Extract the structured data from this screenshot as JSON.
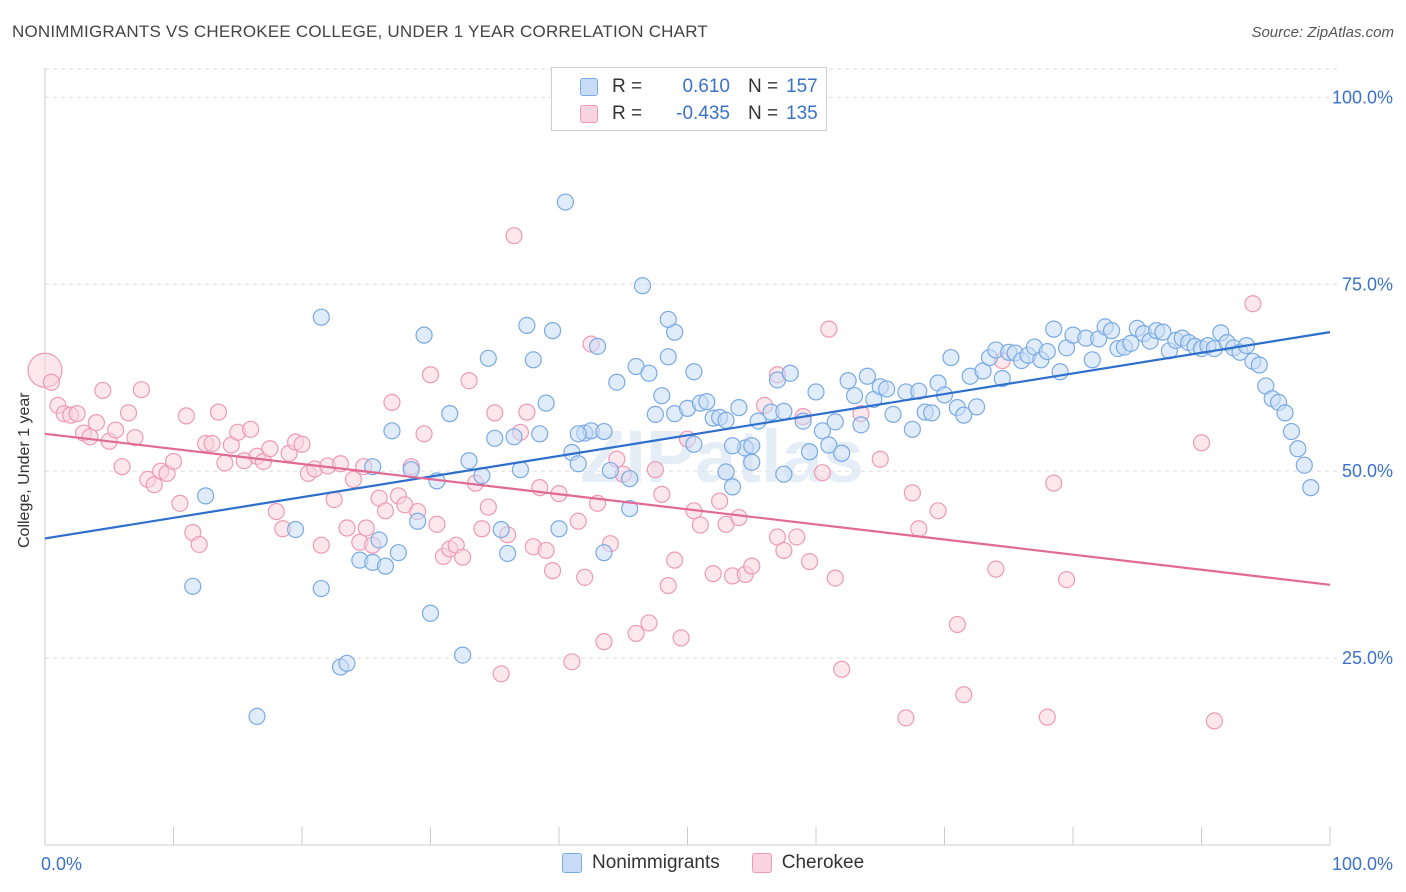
{
  "title": "NONIMMIGRANTS VS CHEROKEE COLLEGE, UNDER 1 YEAR CORRELATION CHART",
  "source": "Source: ZipAtlas.com",
  "watermark": "ZIPatlas",
  "legend": {
    "rows": [
      {
        "r_label": "R =",
        "r_value": "0.610",
        "n_label": "N =",
        "n_value": "157"
      },
      {
        "r_label": "R =",
        "r_value": "-0.435",
        "n_label": "N =",
        "n_value": "135"
      }
    ]
  },
  "colors": {
    "blue": "#7aaae4",
    "blue_line": "#2f6fcc",
    "blue_fill": "#c9dcf5",
    "pink": "#ee9ab5",
    "pink_line": "#e06a93",
    "pink_fill": "#f9d3df",
    "tick_text": "#3a72c9",
    "grid": "#dddddd"
  },
  "chart_data": {
    "type": "scatter",
    "title": "NONIMMIGRANTS VS CHEROKEE COLLEGE, UNDER 1 YEAR CORRELATION CHART",
    "xlabel": "",
    "ylabel": "College, Under 1 year",
    "xlim": [
      0,
      100
    ],
    "ylim": [
      0,
      105
    ],
    "x_tick_labels": [
      "0.0%",
      "100.0%"
    ],
    "y_ticks": [
      25,
      50,
      75,
      100
    ],
    "y_tick_labels": [
      "25.0%",
      "50.0%",
      "75.0%",
      "100.0%"
    ],
    "grid": "horizontal dashed",
    "legend_position": "top-center",
    "series": [
      {
        "name": "Nonimmigrants",
        "r": 0.61,
        "n": 157,
        "trend": {
          "x": [
            0,
            100
          ],
          "y": [
            41.0,
            68.6
          ]
        },
        "points": [
          [
            11.5,
            34.6
          ],
          [
            12.5,
            46.7
          ],
          [
            16.5,
            17.2
          ],
          [
            19.5,
            42.2
          ],
          [
            21.5,
            70.6
          ],
          [
            21.5,
            34.3
          ],
          [
            23.0,
            23.8
          ],
          [
            23.5,
            24.3
          ],
          [
            24.5,
            38.1
          ],
          [
            25.5,
            37.8
          ],
          [
            25.5,
            50.6
          ],
          [
            26.0,
            40.8
          ],
          [
            26.5,
            37.3
          ],
          [
            27.0,
            55.4
          ],
          [
            27.5,
            39.1
          ],
          [
            28.5,
            50.2
          ],
          [
            29.0,
            43.3
          ],
          [
            29.5,
            68.2
          ],
          [
            30.0,
            31.0
          ],
          [
            30.5,
            48.7
          ],
          [
            31.5,
            57.7
          ],
          [
            32.5,
            25.4
          ],
          [
            33.0,
            51.4
          ],
          [
            34.0,
            49.4
          ],
          [
            34.5,
            65.1
          ],
          [
            35.0,
            54.4
          ],
          [
            35.5,
            42.2
          ],
          [
            36.0,
            39.0
          ],
          [
            36.5,
            54.6
          ],
          [
            37.0,
            50.2
          ],
          [
            37.5,
            69.5
          ],
          [
            38.0,
            64.9
          ],
          [
            38.5,
            55.0
          ],
          [
            39.0,
            59.1
          ],
          [
            39.5,
            68.8
          ],
          [
            40.0,
            42.3
          ],
          [
            40.5,
            86.0
          ],
          [
            41.0,
            52.5
          ],
          [
            41.5,
            51.0
          ],
          [
            42.0,
            55.1
          ],
          [
            42.5,
            55.4
          ],
          [
            43.0,
            66.7
          ],
          [
            43.5,
            55.3
          ],
          [
            43.5,
            39.1
          ],
          [
            44.0,
            50.1
          ],
          [
            44.5,
            61.9
          ],
          [
            45.5,
            49.0
          ],
          [
            45.5,
            45.0
          ],
          [
            46.0,
            64.0
          ],
          [
            46.5,
            74.8
          ],
          [
            47.0,
            63.1
          ],
          [
            47.5,
            57.6
          ],
          [
            48.0,
            60.1
          ],
          [
            48.5,
            65.3
          ],
          [
            49.0,
            68.6
          ],
          [
            49.0,
            57.7
          ],
          [
            50.0,
            58.4
          ],
          [
            50.5,
            63.3
          ],
          [
            50.5,
            53.6
          ],
          [
            51.0,
            59.1
          ],
          [
            51.5,
            59.3
          ],
          [
            52.0,
            57.1
          ],
          [
            52.5,
            57.2
          ],
          [
            53.0,
            56.8
          ],
          [
            53.0,
            49.9
          ],
          [
            53.5,
            47.9
          ],
          [
            54.0,
            58.5
          ],
          [
            54.5,
            53.1
          ],
          [
            55.0,
            53.4
          ],
          [
            55.0,
            51.2
          ],
          [
            55.5,
            56.7
          ],
          [
            56.5,
            57.9
          ],
          [
            57.0,
            62.2
          ],
          [
            57.5,
            49.6
          ],
          [
            57.5,
            58.0
          ],
          [
            58.0,
            63.1
          ],
          [
            59.0,
            56.7
          ],
          [
            59.5,
            52.6
          ],
          [
            60.0,
            60.6
          ],
          [
            60.5,
            55.4
          ],
          [
            61.0,
            53.5
          ],
          [
            61.5,
            56.6
          ],
          [
            62.0,
            52.4
          ],
          [
            62.5,
            62.1
          ],
          [
            63.0,
            60.1
          ],
          [
            63.5,
            56.2
          ],
          [
            64.0,
            62.7
          ],
          [
            64.5,
            59.6
          ],
          [
            65.0,
            61.3
          ],
          [
            65.5,
            61.0
          ],
          [
            66.0,
            57.6
          ],
          [
            67.0,
            60.6
          ],
          [
            67.5,
            55.6
          ],
          [
            68.0,
            60.7
          ],
          [
            68.5,
            57.9
          ],
          [
            69.0,
            57.8
          ],
          [
            69.5,
            61.8
          ],
          [
            70.0,
            60.2
          ],
          [
            70.5,
            65.2
          ],
          [
            71.0,
            58.5
          ],
          [
            71.5,
            57.5
          ],
          [
            72.0,
            62.7
          ],
          [
            72.5,
            58.6
          ],
          [
            73.0,
            63.4
          ],
          [
            73.5,
            65.2
          ],
          [
            74.0,
            66.2
          ],
          [
            74.5,
            62.4
          ],
          [
            75.0,
            65.9
          ],
          [
            75.5,
            65.8
          ],
          [
            76.0,
            64.8
          ],
          [
            76.5,
            65.5
          ],
          [
            77.0,
            66.6
          ],
          [
            77.5,
            64.9
          ],
          [
            78.0,
            66.0
          ],
          [
            78.5,
            69.0
          ],
          [
            79.0,
            63.3
          ],
          [
            79.5,
            66.5
          ],
          [
            80.0,
            68.2
          ],
          [
            81.0,
            67.8
          ],
          [
            81.5,
            64.9
          ],
          [
            82.0,
            67.7
          ],
          [
            82.5,
            69.3
          ],
          [
            83.0,
            68.8
          ],
          [
            83.5,
            66.4
          ],
          [
            84.0,
            66.6
          ],
          [
            84.5,
            67.1
          ],
          [
            85.0,
            69.1
          ],
          [
            85.5,
            68.4
          ],
          [
            86.0,
            67.4
          ],
          [
            86.5,
            68.8
          ],
          [
            87.0,
            68.6
          ],
          [
            87.5,
            66.1
          ],
          [
            88.0,
            67.5
          ],
          [
            88.5,
            67.8
          ],
          [
            89.0,
            67.2
          ],
          [
            89.5,
            66.7
          ],
          [
            90.0,
            66.4
          ],
          [
            90.5,
            66.8
          ],
          [
            91.0,
            66.4
          ],
          [
            91.5,
            68.5
          ],
          [
            92.0,
            67.2
          ],
          [
            92.5,
            66.5
          ],
          [
            93.0,
            65.9
          ],
          [
            93.5,
            66.8
          ],
          [
            94.0,
            64.7
          ],
          [
            94.5,
            64.2
          ],
          [
            95.0,
            61.4
          ],
          [
            95.5,
            59.7
          ],
          [
            96.0,
            59.2
          ],
          [
            96.5,
            57.8
          ],
          [
            97.0,
            55.3
          ],
          [
            97.5,
            53.0
          ],
          [
            98.0,
            50.8
          ],
          [
            98.5,
            47.8
          ],
          [
            48.5,
            70.3
          ],
          [
            41.5,
            55.0
          ],
          [
            53.5,
            53.4
          ]
        ]
      },
      {
        "name": "Cherokee",
        "r": -0.435,
        "n": 135,
        "trend": {
          "x": [
            0,
            100
          ],
          "y": [
            55.0,
            34.8
          ]
        },
        "points": [
          [
            0.0,
            63.5
          ],
          [
            0.5,
            61.9
          ],
          [
            1.0,
            58.8
          ],
          [
            1.5,
            57.7
          ],
          [
            2.0,
            57.5
          ],
          [
            2.5,
            57.7
          ],
          [
            3.0,
            55.1
          ],
          [
            3.5,
            54.6
          ],
          [
            4.0,
            56.5
          ],
          [
            4.5,
            60.8
          ],
          [
            5.0,
            54.0
          ],
          [
            5.5,
            55.5
          ],
          [
            6.0,
            50.6
          ],
          [
            6.5,
            57.8
          ],
          [
            7.0,
            54.5
          ],
          [
            7.5,
            60.9
          ],
          [
            8.0,
            48.9
          ],
          [
            8.5,
            48.2
          ],
          [
            9.0,
            50.0
          ],
          [
            9.5,
            49.7
          ],
          [
            10.0,
            51.3
          ],
          [
            10.5,
            45.7
          ],
          [
            11.0,
            57.4
          ],
          [
            11.5,
            41.8
          ],
          [
            12.0,
            40.2
          ],
          [
            12.5,
            53.7
          ],
          [
            13.0,
            53.7
          ],
          [
            13.5,
            57.9
          ],
          [
            14.0,
            51.1
          ],
          [
            14.5,
            53.5
          ],
          [
            15.0,
            55.2
          ],
          [
            15.5,
            51.4
          ],
          [
            16.0,
            55.6
          ],
          [
            16.5,
            52.0
          ],
          [
            17.0,
            51.3
          ],
          [
            17.5,
            53.0
          ],
          [
            18.0,
            44.6
          ],
          [
            18.5,
            42.3
          ],
          [
            19.0,
            52.4
          ],
          [
            19.5,
            53.9
          ],
          [
            20.0,
            53.6
          ],
          [
            20.5,
            49.7
          ],
          [
            21.0,
            50.3
          ],
          [
            21.5,
            40.1
          ],
          [
            22.0,
            50.7
          ],
          [
            22.5,
            46.2
          ],
          [
            23.0,
            51.0
          ],
          [
            23.5,
            42.4
          ],
          [
            24.0,
            48.9
          ],
          [
            24.5,
            40.5
          ],
          [
            25.0,
            42.4
          ],
          [
            25.5,
            40.1
          ],
          [
            26.0,
            46.4
          ],
          [
            26.5,
            44.7
          ],
          [
            27.0,
            59.2
          ],
          [
            27.5,
            46.7
          ],
          [
            28.0,
            45.5
          ],
          [
            28.5,
            50.6
          ],
          [
            29.0,
            44.6
          ],
          [
            29.5,
            55.0
          ],
          [
            30.0,
            62.9
          ],
          [
            30.5,
            42.9
          ],
          [
            31.0,
            38.6
          ],
          [
            31.5,
            39.6
          ],
          [
            32.0,
            40.1
          ],
          [
            32.5,
            38.5
          ],
          [
            33.0,
            62.1
          ],
          [
            33.5,
            48.4
          ],
          [
            34.0,
            42.3
          ],
          [
            34.5,
            45.2
          ],
          [
            35.0,
            57.8
          ],
          [
            35.5,
            22.9
          ],
          [
            36.0,
            41.5
          ],
          [
            36.5,
            81.5
          ],
          [
            37.0,
            55.2
          ],
          [
            37.5,
            57.9
          ],
          [
            38.0,
            39.9
          ],
          [
            38.5,
            47.8
          ],
          [
            39.0,
            39.4
          ],
          [
            39.5,
            36.7
          ],
          [
            40.0,
            47.0
          ],
          [
            41.0,
            24.5
          ],
          [
            41.5,
            43.3
          ],
          [
            42.0,
            35.8
          ],
          [
            42.5,
            67.0
          ],
          [
            43.0,
            45.7
          ],
          [
            43.5,
            27.2
          ],
          [
            44.0,
            40.3
          ],
          [
            44.5,
            51.6
          ],
          [
            45.0,
            49.6
          ],
          [
            46.0,
            28.3
          ],
          [
            47.0,
            29.7
          ],
          [
            47.5,
            50.2
          ],
          [
            48.0,
            46.9
          ],
          [
            48.5,
            34.7
          ],
          [
            49.0,
            38.1
          ],
          [
            49.5,
            27.7
          ],
          [
            50.0,
            54.3
          ],
          [
            50.5,
            44.7
          ],
          [
            51.0,
            42.8
          ],
          [
            52.0,
            36.3
          ],
          [
            52.5,
            46.0
          ],
          [
            53.0,
            42.9
          ],
          [
            53.5,
            36.0
          ],
          [
            54.0,
            43.8
          ],
          [
            54.5,
            36.2
          ],
          [
            55.0,
            37.3
          ],
          [
            56.0,
            58.8
          ],
          [
            57.0,
            41.2
          ],
          [
            57.5,
            39.4
          ],
          [
            58.5,
            41.2
          ],
          [
            59.5,
            37.9
          ],
          [
            60.5,
            49.8
          ],
          [
            61.0,
            69.0
          ],
          [
            61.5,
            35.7
          ],
          [
            62.0,
            23.5
          ],
          [
            63.5,
            57.7
          ],
          [
            65.0,
            51.6
          ],
          [
            67.0,
            17.0
          ],
          [
            67.5,
            47.1
          ],
          [
            68.0,
            42.3
          ],
          [
            69.5,
            44.7
          ],
          [
            71.0,
            29.5
          ],
          [
            71.5,
            20.1
          ],
          [
            74.0,
            36.9
          ],
          [
            74.5,
            64.8
          ],
          [
            78.0,
            17.1
          ],
          [
            78.5,
            48.4
          ],
          [
            79.5,
            35.5
          ],
          [
            90.0,
            53.8
          ],
          [
            91.0,
            16.6
          ],
          [
            94.0,
            72.4
          ],
          [
            57.0,
            62.9
          ],
          [
            59.0,
            57.3
          ],
          [
            24.8,
            50.6
          ]
        ]
      }
    ]
  }
}
